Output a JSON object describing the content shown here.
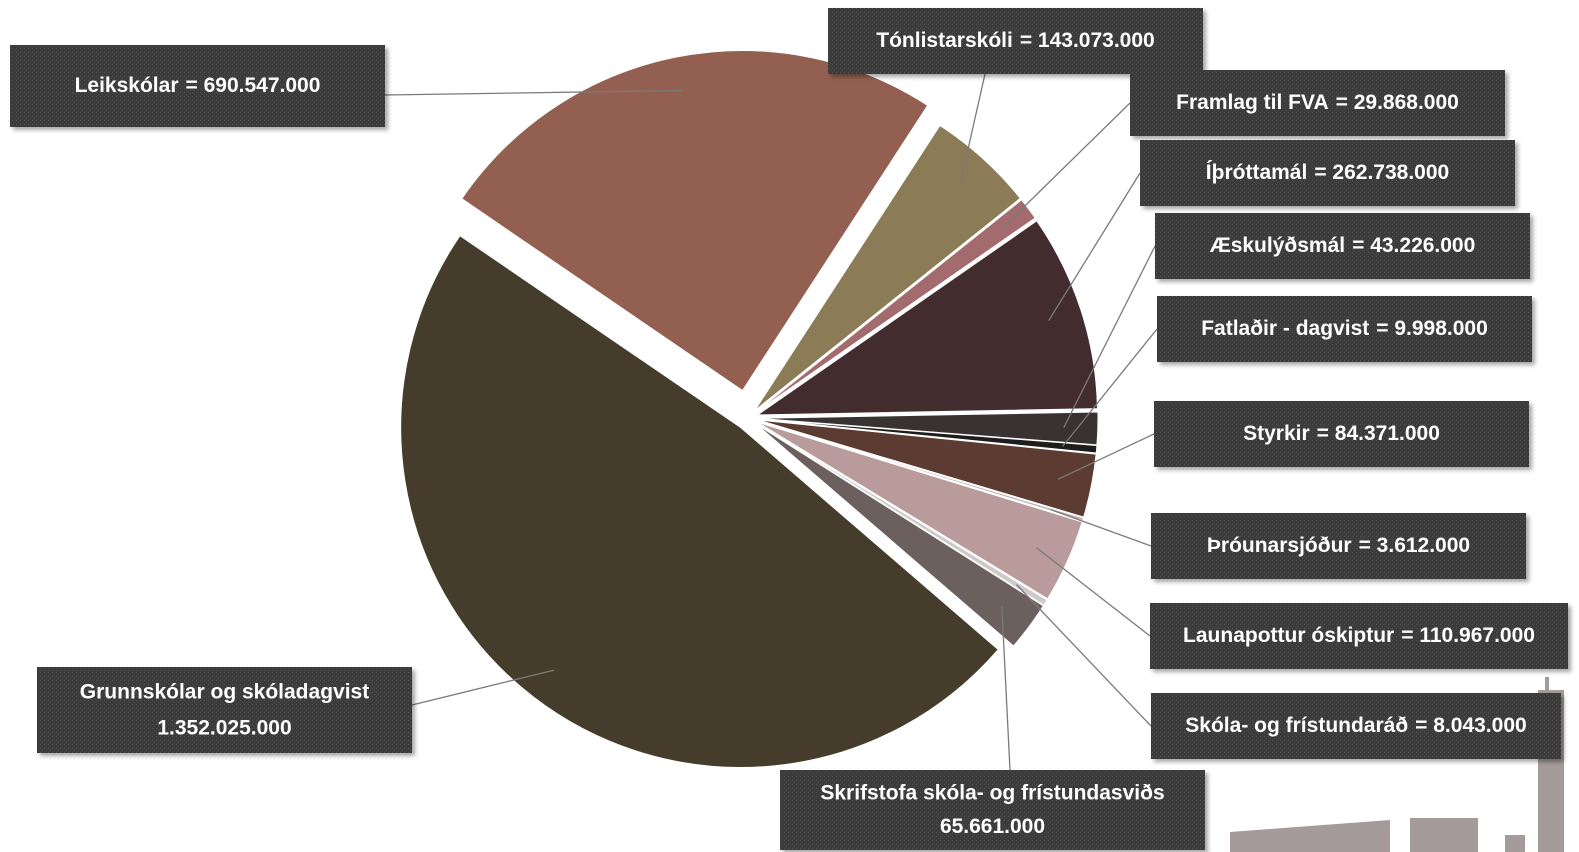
{
  "chart_data": {
    "type": "pie",
    "categories": [
      "Tónlistarskóli",
      "Framlag til FVA",
      "Íþróttamál",
      "Æskulýðsmál",
      "Fatlaðir - dagvist",
      "Styrkir",
      "Þróunarsjóður",
      "Launapottur óskiptur",
      "Skóla- og frístundaráð",
      "Skrifstofa skóla- og frístundasviðs",
      "Grunnskólar og skóladagvist",
      "Leikskólar"
    ],
    "values": [
      143073000,
      29868000,
      262738000,
      43226000,
      9998000,
      84371000,
      3612000,
      110967000,
      8043000,
      65661000,
      1352025000,
      690547000
    ],
    "value_labels": [
      "= 143.073.000",
      "= 29.868.000",
      "= 262.738.000",
      "= 43.226.000",
      "= 9.998.000",
      "= 84.371.000",
      "= 3.612.000",
      "= 110.967.000",
      "= 8.043.000",
      "65.661.000",
      "1.352.025.000",
      "= 690.547.000"
    ],
    "colors": [
      "#8b7b57",
      "#a36b6d",
      "#432c2e",
      "#383232",
      "#1e1c1c",
      "#5c3b32",
      "#b5b0ae",
      "#b99b9b",
      "#cfcaca",
      "#6b605d",
      "#453c2c",
      "#935f50"
    ]
  }
}
